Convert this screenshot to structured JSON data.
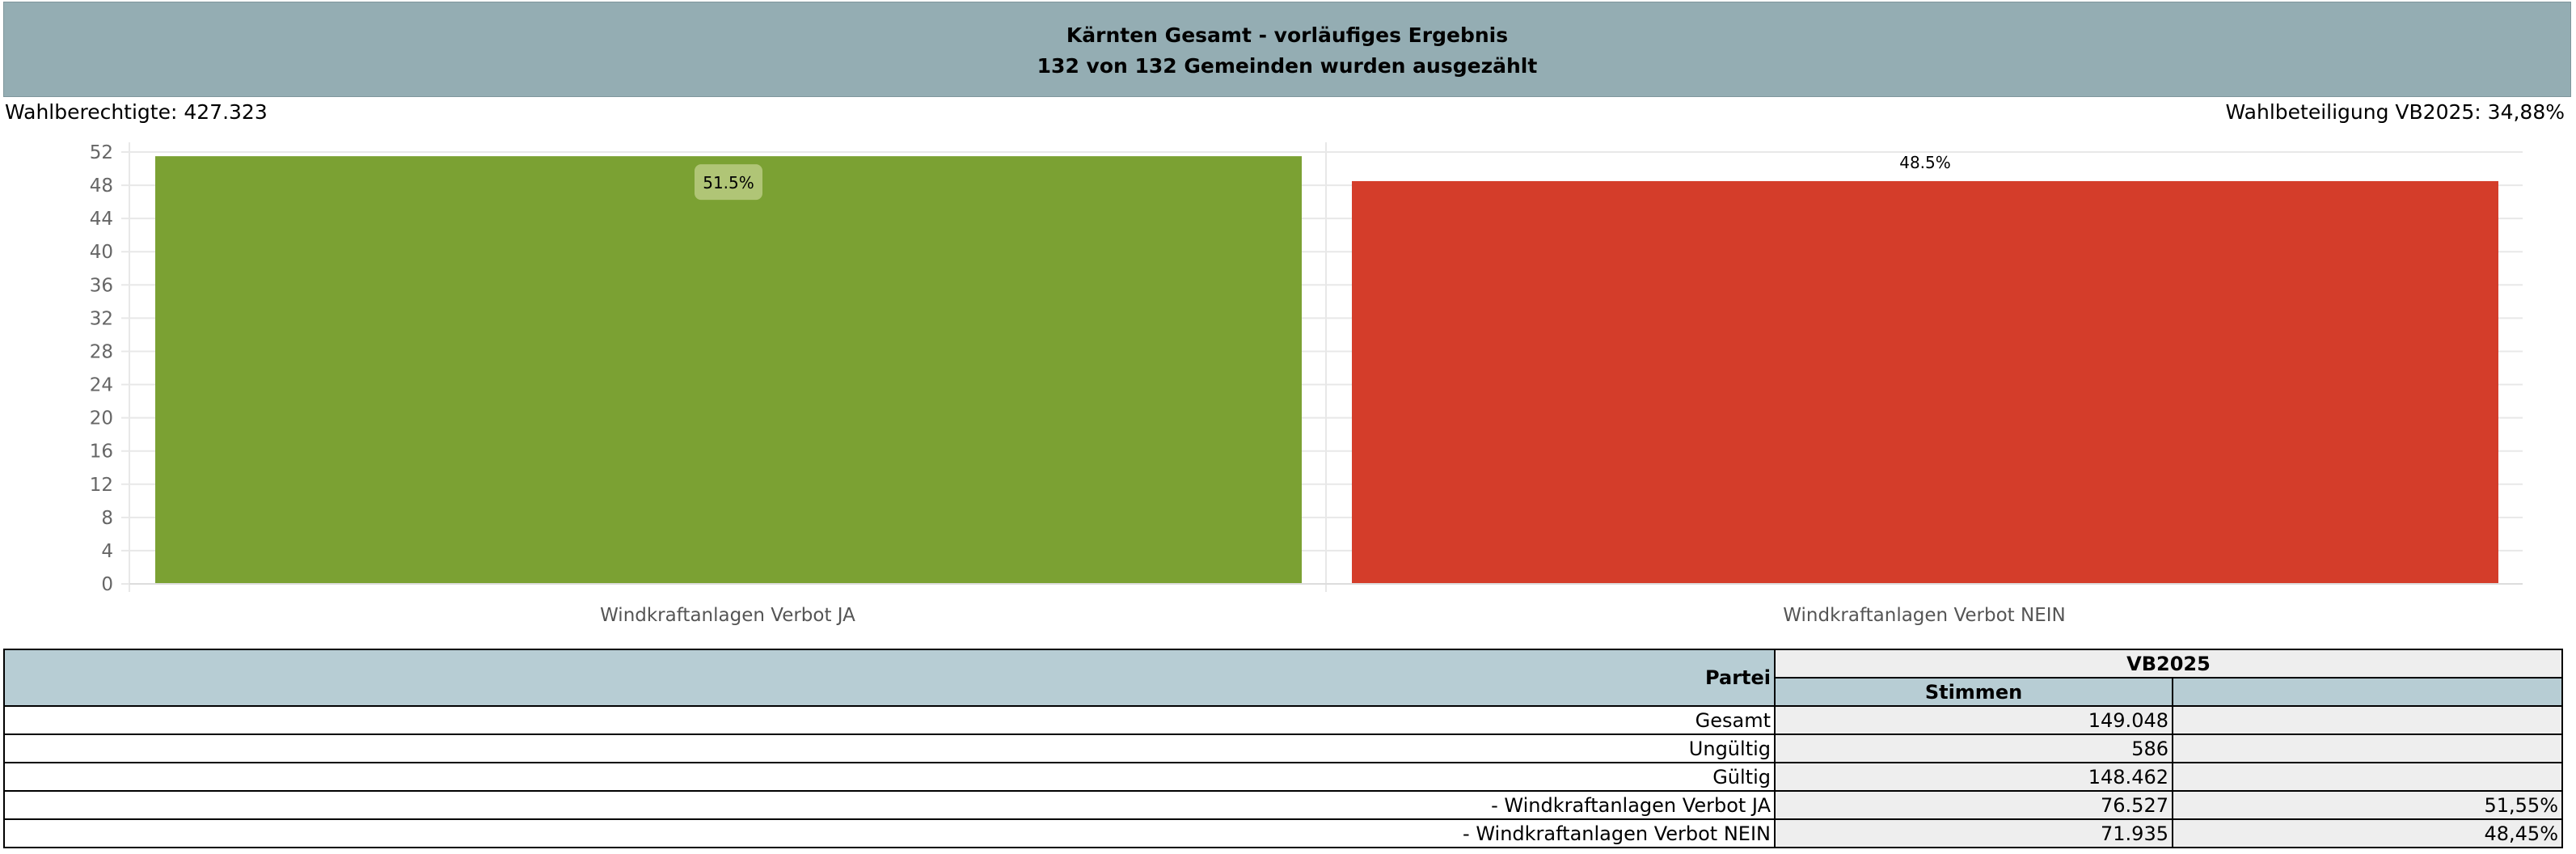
{
  "header": {
    "title": "Kärnten Gesamt -  vorläufiges Ergebnis",
    "subtitle": "132 von 132 Gemeinden wurden ausgezählt"
  },
  "info": {
    "eligible": "Wahlberechtigte:  427.323",
    "turnout": "Wahlbeteiligung VB2025:  34,88%"
  },
  "chart_data": {
    "type": "bar",
    "categories": [
      "Windkraftanlagen Verbot JA",
      "Windkraftanlagen Verbot NEIN"
    ],
    "values": [
      51.5,
      48.5
    ],
    "data_labels": [
      "51.5%",
      "48.5%"
    ],
    "colors": [
      "#7ba133",
      "#d43d2a"
    ],
    "ylim": [
      0,
      52
    ],
    "yticks": [
      "0",
      "4",
      "8",
      "12",
      "16",
      "20",
      "24",
      "28",
      "32",
      "36",
      "40",
      "44",
      "48",
      "52"
    ],
    "grid": true,
    "legend": "none"
  },
  "table": {
    "header_partei": "Partei",
    "header_group": "VB2025",
    "header_votes": "Stimmen",
    "header_pct": "",
    "rows": [
      {
        "label": "Gesamt",
        "votes": "149.048",
        "pct": ""
      },
      {
        "label": "Ungültig",
        "votes": "586",
        "pct": ""
      },
      {
        "label": "Gültig",
        "votes": "148.462",
        "pct": ""
      },
      {
        "label": "- Windkraftanlagen Verbot JA",
        "votes": "76.527",
        "pct": "51,55%"
      },
      {
        "label": "- Windkraftanlagen Verbot NEIN",
        "votes": "71.935",
        "pct": "48,45%"
      }
    ]
  }
}
